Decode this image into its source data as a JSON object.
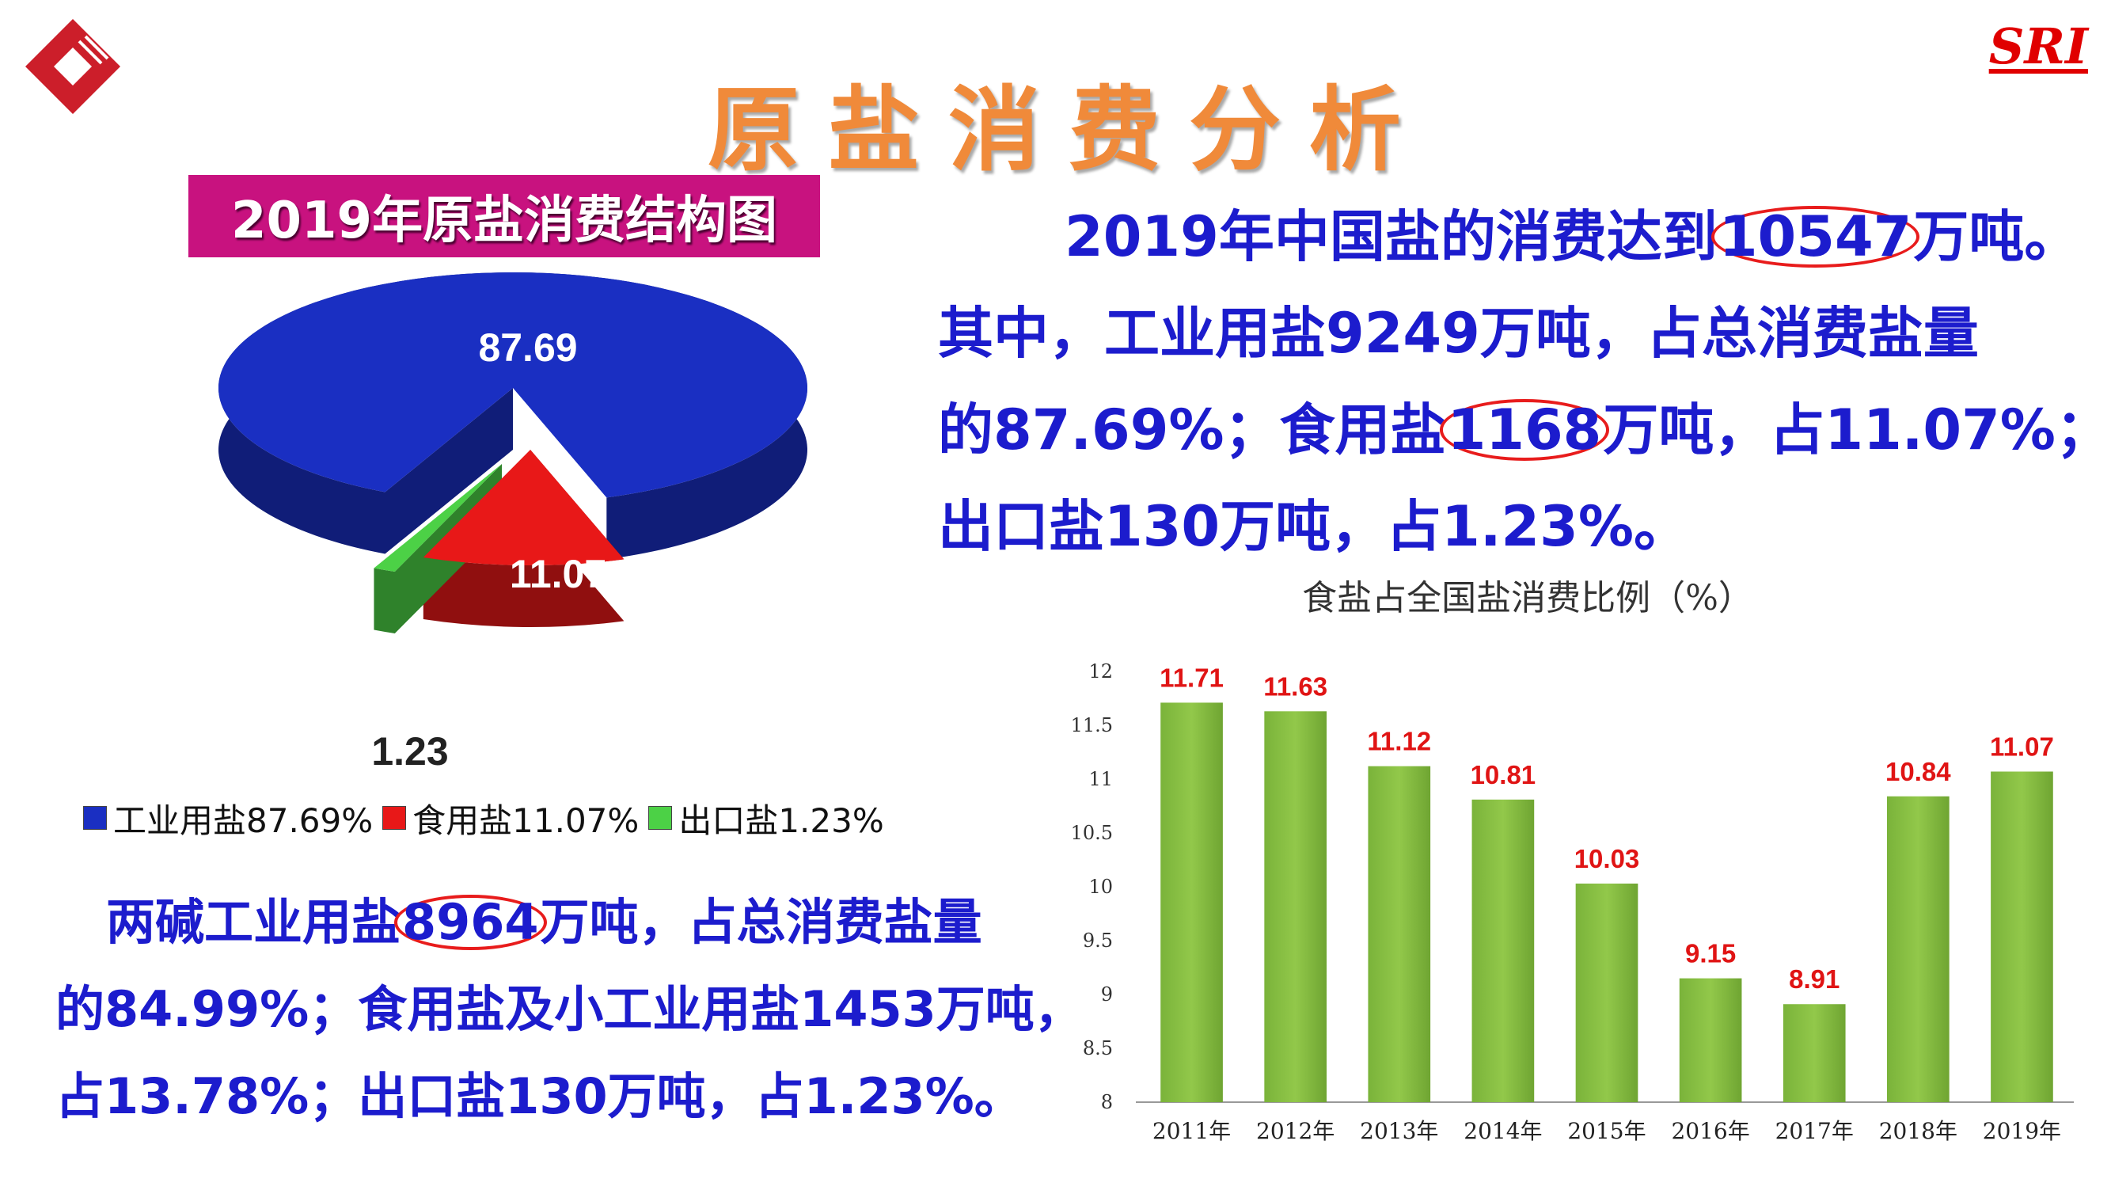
{
  "header": {
    "title": "原盐消费分析",
    "brand": "SRI",
    "colors": {
      "title": "#f08a3a",
      "brand": "#e00000",
      "logo": "#cc1e2a"
    }
  },
  "left": {
    "pie_title": "2019年原盐消费结构图",
    "pie_labels": [
      "87.69",
      "11.07",
      "1.23"
    ],
    "legend": [
      {
        "label": "工业用盐87.69%",
        "color": "#1a2fc2"
      },
      {
        "label": "食用盐11.07%",
        "color": "#e81818"
      },
      {
        "label": "出口盐1.23%",
        "color": "#4cd146"
      }
    ],
    "paragraph": {
      "line1_pre": "两碱工业用盐",
      "line1_circled": "8964",
      "line1_post": "万吨，占总消费盐量",
      "line2": "的84.99%；食用盐及小工业用盐1453万吨，",
      "line3": "占13.78%；出口盐130万吨，占1.23%。"
    }
  },
  "right": {
    "paragraph": {
      "line1_pre": "2019年中国盐的消费达到",
      "line1_circled": "10547",
      "line1_post": "万吨。",
      "line2": "其中，工业用盐9249万吨，占总消费盐量",
      "line3_pre": "的87.69%；食用盐",
      "line3_circled": "1168",
      "line3_post": "万吨，占11.07%；",
      "line4": "出口盐130万吨，占1.23%。"
    }
  },
  "chart_data": [
    {
      "type": "pie",
      "title": "2019年原盐消费结构图",
      "categories": [
        "工业用盐",
        "食用盐",
        "出口盐"
      ],
      "values": [
        87.69,
        11.07,
        1.23
      ],
      "colors": [
        "#1a2fc2",
        "#e81818",
        "#4cd146"
      ],
      "legend": "bottom"
    },
    {
      "type": "bar",
      "title": "食盐占全国盐消费比例（%）",
      "categories": [
        "2011年",
        "2012年",
        "2013年",
        "2014年",
        "2015年",
        "2016年",
        "2017年",
        "2018年",
        "2019年"
      ],
      "values": [
        11.71,
        11.63,
        11.12,
        10.81,
        10.03,
        9.15,
        8.91,
        10.84,
        11.07
      ],
      "value_labels": [
        "11.71",
        "11.63",
        "11.12",
        "10.81",
        "10.03",
        "9.15",
        "8.91",
        "10.84",
        "11.07"
      ],
      "ylim": [
        8,
        12
      ],
      "yticks": [
        "8",
        "8.5",
        "9",
        "9.5",
        "10",
        "10.5",
        "11",
        "11.5",
        "12"
      ],
      "grid": false,
      "bar_color": "#92c84a",
      "label_color": "#e01414"
    }
  ]
}
